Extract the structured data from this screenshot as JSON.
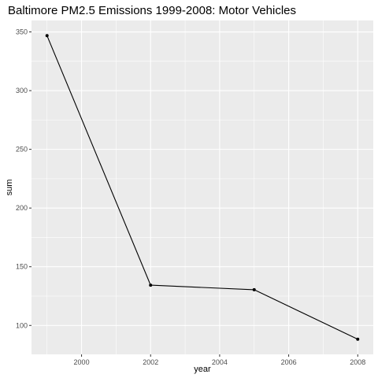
{
  "chart_data": {
    "type": "line",
    "title": "Baltimore PM2.5 Emissions 1999-2008: Motor Vehicles",
    "xlabel": "year",
    "ylabel": "sum",
    "x": [
      1999,
      2002,
      2005,
      2008
    ],
    "values": [
      346.82,
      134.31,
      130.43,
      88.28
    ],
    "xlim": [
      1998.55,
      2008.45
    ],
    "ylim": [
      75.36,
      359.75
    ],
    "x_ticks": [
      2000,
      2002,
      2004,
      2006,
      2008
    ],
    "x_tick_labels": [
      "2000",
      "2002",
      "2004",
      "2006",
      "2008"
    ],
    "y_ticks": [
      100,
      150,
      200,
      250,
      300,
      350
    ],
    "y_tick_labels": [
      "100",
      "150",
      "200",
      "250",
      "300",
      "350"
    ],
    "grid": true,
    "panel_background": "#EBEBEB",
    "grid_color": "#FFFFFF",
    "line_color": "#000000",
    "point_color": "#000000",
    "tick_label_color": "#4D4D4D"
  }
}
